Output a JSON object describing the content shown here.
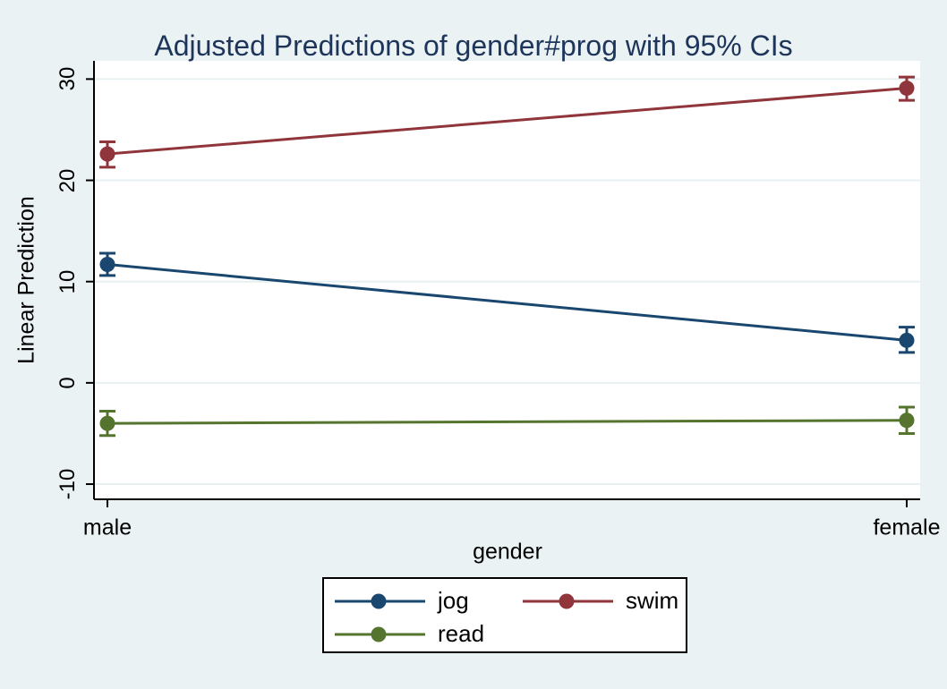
{
  "chart_data": {
    "type": "line",
    "title": "Adjusted Predictions of gender#prog with 95% CIs",
    "xlabel": "gender",
    "ylabel": "Linear Prediction",
    "categories": [
      "male",
      "female"
    ],
    "yticks": [
      -10,
      0,
      10,
      20,
      30
    ],
    "ylim": [
      -11.5,
      31.8
    ],
    "grid": true,
    "legend_position": "bottom",
    "error_bars": "95% confidence intervals",
    "series": [
      {
        "name": "jog",
        "color": "#1a476f",
        "values": [
          11.7,
          4.2
        ],
        "ci_low": [
          10.6,
          3.0
        ],
        "ci_high": [
          12.8,
          5.5
        ]
      },
      {
        "name": "swim",
        "color": "#90353b",
        "values": [
          22.6,
          29.1
        ],
        "ci_low": [
          21.3,
          27.9
        ],
        "ci_high": [
          23.8,
          30.2
        ]
      },
      {
        "name": "read",
        "color": "#55752f",
        "values": [
          -4.0,
          -3.7
        ],
        "ci_low": [
          -5.2,
          -5.0
        ],
        "ci_high": [
          -2.8,
          -2.4
        ]
      }
    ]
  },
  "colors": {
    "figure_background": "#eaf2f3",
    "plot_background": "#ffffff",
    "gridline": "#e7f0f1",
    "axis": "#000000",
    "title_text": "#1e355b",
    "label_text": "#000000"
  }
}
